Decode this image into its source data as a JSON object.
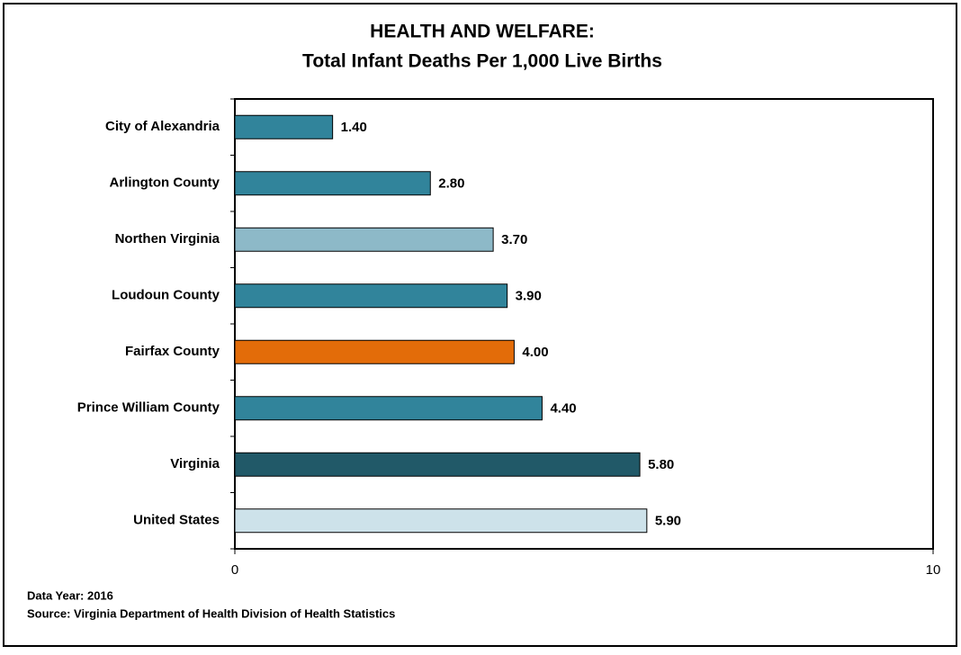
{
  "chart_data": {
    "type": "bar",
    "orientation": "horizontal",
    "title": [
      "HEALTH AND WELFARE:",
      "Total Infant Deaths Per 1,000 Live Births"
    ],
    "categories": [
      "City of Alexandria",
      "Arlington County",
      "Northen Virginia",
      "Loudoun County",
      "Fairfax County",
      "Prince William County",
      "Virginia",
      "United States"
    ],
    "values": [
      1.4,
      2.8,
      3.7,
      3.9,
      4.0,
      4.4,
      5.8,
      5.9
    ],
    "value_labels": [
      "1.40",
      "2.80",
      "3.70",
      "3.90",
      "4.00",
      "4.40",
      "5.80",
      "5.90"
    ],
    "colors": [
      "#31849b",
      "#31849b",
      "#8db9c8",
      "#31849b",
      "#e36c09",
      "#31849b",
      "#215968",
      "#cde2ea"
    ],
    "xlim": [
      0,
      10
    ],
    "xticks": [
      0,
      10
    ],
    "notes": [
      "Data Year: 2016",
      "Source: Virginia Department of Health Division of Health Statistics"
    ]
  }
}
